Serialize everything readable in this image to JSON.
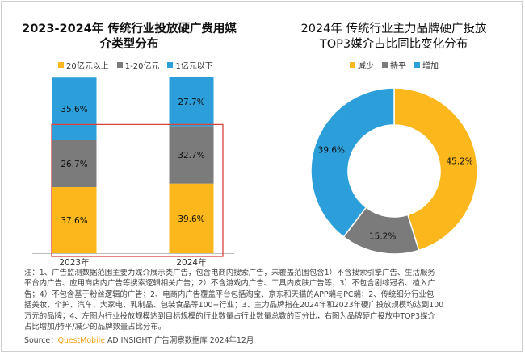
{
  "colors": {
    "above_20yi": "#fbb71b",
    "mid": "#7b7b7b",
    "below_1yi": "#2c9fdb",
    "highlight_box": "#d9443c",
    "decrease": "#fbb71b",
    "flat": "#7b7b7b",
    "increase": "#2c9fdb"
  },
  "chart_data": [
    {
      "type": "bar",
      "stacked": true,
      "title": "2023-2024年 传统行业投放硬广费用媒介类型分布",
      "categories": [
        "2023年",
        "2024年"
      ],
      "series": [
        {
          "name": "20亿元以上",
          "values": [
            37.6,
            39.6
          ],
          "labels": [
            "37.6%",
            "39.6%"
          ]
        },
        {
          "name": "1-20亿元",
          "values": [
            26.7,
            32.7
          ],
          "labels": [
            "26.7%",
            "32.7%"
          ]
        },
        {
          "name": "1亿元以下",
          "values": [
            35.6,
            27.7
          ],
          "labels": [
            "35.6%",
            "27.7%"
          ]
        }
      ],
      "ylim": [
        0,
        100
      ],
      "legend": "top",
      "grid": false
    },
    {
      "type": "pie",
      "donut": true,
      "title": "2024年 传统行业主力品牌硬广投放TOP3媒介占比同比变化分布",
      "labels": [
        "减少",
        "持平",
        "增加"
      ],
      "values": [
        45.2,
        15.2,
        39.6
      ],
      "value_labels": [
        "45.2%",
        "15.2%",
        "39.6%"
      ],
      "legend": "top"
    }
  ],
  "left_title_lines": [
    "2023-2024年 传统行业投放硬广费用媒",
    "介类型分布"
  ],
  "right_title_lines": [
    "2024年 传统行业主力品牌硬广投放",
    "TOP3媒介占比同比变化分布"
  ],
  "note_lines": [
    "注：1、广告监测数据范围主要为媒介展示类广告，包含电商内搜索广告，未覆盖范围包含1）不含搜索引擎广告、生活服务",
    "平台内广告、应用商店内广告等搜索逻辑相关广告；2）不含游戏内广告、工具内皮肤广告等；3）不包含剧综冠名、植入广",
    "告；4）不包含基于粉丝逻辑的广告；2、电商内广告覆盖平台包括淘宝、京东和天猫的APP端与PC端；2、传统细分行业包",
    "括美妆、个护、汽车、大家电、乳制品、包装食品等100+行业；3、主力品牌指在2024年和2023年硬广投放规模均达到100",
    "万元的品牌；4、左图为行业投放规模达到目标规模的行业数量占行业数量总数的百分比，右图为品牌硬广投放中TOP3媒介",
    "占比增加/持平/减少的品牌数量占比分布。"
  ],
  "source": {
    "prefix": "Source：",
    "brand": "QuestMobile",
    "rest": " AD INSIGHT 广告洞察数据库 2024年12月"
  }
}
